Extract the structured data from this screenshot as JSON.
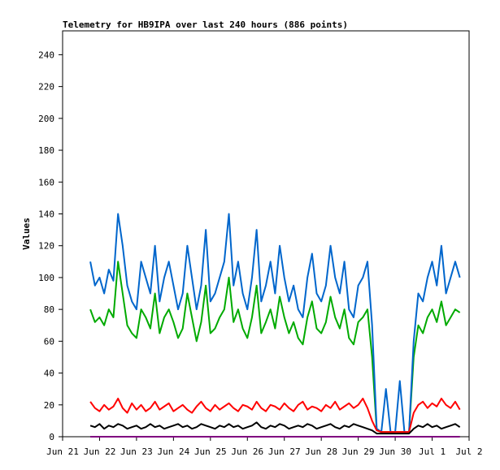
{
  "chart_data": {
    "type": "line",
    "title": "Telemetry for HB9IPA over last 240 hours (886 points)",
    "y_label": "Values",
    "xlim": [
      0,
      264
    ],
    "xticks": [
      {
        "value": 0,
        "label": "Jun 21"
      },
      {
        "value": 24,
        "label": "Jun 22"
      },
      {
        "value": 48,
        "label": "Jun 23"
      },
      {
        "value": 72,
        "label": "Jun 24"
      },
      {
        "value": 96,
        "label": "Jun 25"
      },
      {
        "value": 120,
        "label": "Jun 26"
      },
      {
        "value": 144,
        "label": "Jun 27"
      },
      {
        "value": 168,
        "label": "Jun 28"
      },
      {
        "value": 192,
        "label": "Jun 29"
      },
      {
        "value": 216,
        "label": "Jun 30"
      },
      {
        "value": 240,
        "label": "Jul 1"
      },
      {
        "value": 264,
        "label": "Jul 2"
      }
    ],
    "ylim": [
      0,
      255
    ],
    "yticks": [
      0,
      20,
      40,
      60,
      80,
      100,
      120,
      140,
      160,
      180,
      200,
      220,
      240
    ],
    "x": [
      18,
      21,
      24,
      27,
      30,
      33,
      36,
      39,
      42,
      45,
      48,
      51,
      54,
      57,
      60,
      63,
      66,
      69,
      72,
      75,
      78,
      81,
      84,
      87,
      90,
      93,
      96,
      99,
      102,
      105,
      108,
      111,
      114,
      117,
      120,
      123,
      126,
      129,
      132,
      135,
      138,
      141,
      144,
      147,
      150,
      153,
      156,
      159,
      162,
      165,
      168,
      171,
      174,
      177,
      180,
      183,
      186,
      189,
      192,
      195,
      198,
      201,
      204,
      207,
      210,
      213,
      216,
      219,
      222,
      225,
      228,
      231,
      234,
      237,
      240,
      243,
      246,
      249,
      252,
      255,
      258
    ],
    "series": [
      {
        "color": "#00aa00",
        "values": [
          80,
          72,
          75,
          70,
          80,
          75,
          110,
          90,
          70,
          65,
          62,
          80,
          75,
          68,
          90,
          65,
          75,
          80,
          72,
          62,
          68,
          90,
          75,
          60,
          72,
          95,
          65,
          68,
          75,
          80,
          100,
          72,
          80,
          68,
          62,
          75,
          95,
          65,
          72,
          80,
          68,
          88,
          75,
          65,
          72,
          62,
          58,
          75,
          85,
          68,
          65,
          72,
          88,
          75,
          68,
          80,
          62,
          58,
          72,
          75,
          80,
          50,
          4,
          3,
          3,
          3,
          3,
          3,
          3,
          3,
          50,
          70,
          65,
          75,
          80,
          72,
          85,
          70,
          75,
          80,
          78
        ]
      },
      {
        "color": "#0066cc",
        "values": [
          110,
          95,
          100,
          90,
          105,
          98,
          140,
          120,
          95,
          85,
          80,
          110,
          100,
          90,
          120,
          85,
          100,
          110,
          95,
          80,
          90,
          120,
          100,
          80,
          95,
          130,
          85,
          90,
          100,
          110,
          140,
          95,
          110,
          90,
          80,
          100,
          130,
          85,
          95,
          110,
          90,
          120,
          100,
          85,
          95,
          80,
          75,
          100,
          115,
          90,
          85,
          95,
          120,
          100,
          90,
          110,
          80,
          75,
          95,
          100,
          110,
          70,
          5,
          3,
          30,
          3,
          3,
          35,
          3,
          3,
          60,
          90,
          85,
          100,
          110,
          95,
          120,
          90,
          100,
          110,
          100
        ]
      },
      {
        "color": "#ff0000",
        "values": [
          22,
          18,
          16,
          20,
          17,
          19,
          24,
          18,
          15,
          21,
          17,
          20,
          16,
          18,
          22,
          17,
          19,
          21,
          16,
          18,
          20,
          17,
          15,
          19,
          22,
          18,
          16,
          20,
          17,
          19,
          21,
          18,
          16,
          20,
          19,
          17,
          22,
          18,
          16,
          20,
          19,
          17,
          21,
          18,
          16,
          20,
          22,
          17,
          19,
          18,
          16,
          20,
          18,
          22,
          17,
          19,
          21,
          18,
          20,
          24,
          18,
          10,
          4,
          3,
          3,
          3,
          3,
          3,
          3,
          3,
          15,
          20,
          22,
          18,
          21,
          19,
          24,
          20,
          18,
          22,
          17
        ]
      },
      {
        "color": "#000000",
        "values": [
          7,
          6,
          8,
          5,
          7,
          6,
          8,
          7,
          5,
          6,
          7,
          5,
          6,
          8,
          6,
          7,
          5,
          6,
          7,
          8,
          6,
          7,
          5,
          6,
          8,
          7,
          6,
          5,
          7,
          6,
          8,
          6,
          7,
          5,
          6,
          7,
          9,
          6,
          5,
          7,
          6,
          8,
          7,
          5,
          6,
          7,
          6,
          8,
          7,
          5,
          6,
          7,
          8,
          6,
          5,
          7,
          6,
          8,
          7,
          6,
          5,
          4,
          2,
          2,
          2,
          2,
          2,
          2,
          2,
          2,
          5,
          7,
          6,
          8,
          6,
          7,
          5,
          6,
          7,
          8,
          6
        ]
      },
      {
        "color": "#800080",
        "values": [
          0,
          0,
          0,
          0,
          0,
          0,
          0,
          0,
          0,
          0,
          0,
          0,
          0,
          0,
          0,
          0,
          0,
          0,
          0,
          0,
          0,
          0,
          0,
          0,
          0,
          0,
          0,
          0,
          0,
          0,
          0,
          0,
          0,
          0,
          0,
          0,
          0,
          0,
          0,
          0,
          0,
          0,
          0,
          0,
          0,
          0,
          0,
          0,
          0,
          0,
          0,
          0,
          0,
          0,
          0,
          0,
          0,
          0,
          0,
          0,
          0,
          0,
          0,
          0,
          0,
          0,
          0,
          0,
          0,
          0,
          0,
          0,
          0,
          0,
          0,
          0,
          0,
          0,
          0,
          0,
          0
        ]
      }
    ]
  }
}
